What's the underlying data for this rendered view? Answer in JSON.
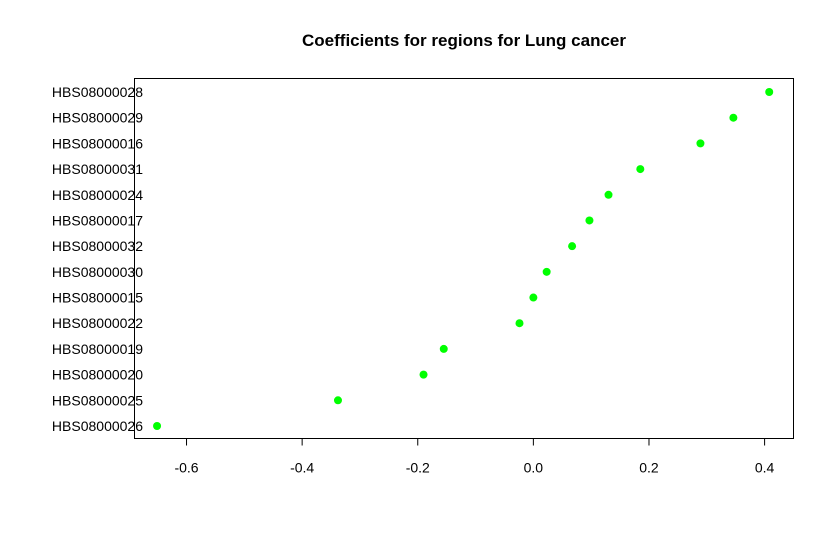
{
  "chart_data": {
    "type": "scatter",
    "title": "Coefficients for regions for Lung cancer",
    "xlabel": "",
    "ylabel": "",
    "xlim": [
      -0.69,
      0.45
    ],
    "x_ticks": [
      -0.6,
      -0.4,
      -0.2,
      0.0,
      0.2,
      0.4
    ],
    "x_tick_labels": [
      "-0.6",
      "-0.4",
      "-0.2",
      "0.0",
      "0.2",
      "0.4"
    ],
    "categories": [
      "HBS08000028",
      "HBS08000029",
      "HBS08000016",
      "HBS08000031",
      "HBS08000024",
      "HBS08000017",
      "HBS08000032",
      "HBS08000030",
      "HBS08000015",
      "HBS08000022",
      "HBS08000019",
      "HBS08000020",
      "HBS08000025",
      "HBS08000026"
    ],
    "values": [
      0.408,
      0.346,
      0.289,
      0.185,
      0.13,
      0.097,
      0.067,
      0.023,
      0.0,
      -0.024,
      -0.155,
      -0.19,
      -0.338,
      -0.651
    ],
    "point_color": "#00ff00",
    "grid": false
  }
}
